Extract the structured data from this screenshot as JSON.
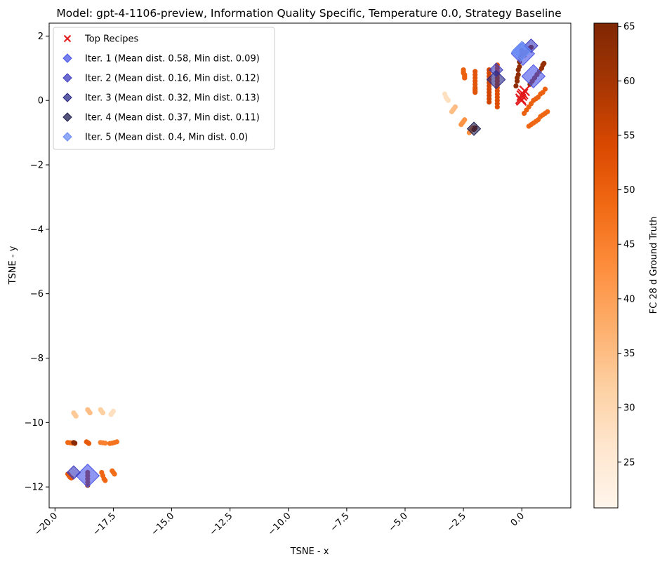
{
  "chart_data": {
    "type": "scatter",
    "title": "Model: gpt-4-1106-preview, Information Quality Specific, Temperature 0.0, Strategy Baseline",
    "xlabel": "TSNE - x",
    "ylabel": "TSNE - y",
    "xlim": [
      -20.25,
      2.1
    ],
    "ylim": [
      -12.65,
      2.4
    ],
    "xticks": [
      -20.0,
      -17.5,
      -15.0,
      -12.5,
      -10.0,
      -7.5,
      -5.0,
      -2.5,
      0.0
    ],
    "xtick_labels": [
      "−20.0",
      "−17.5",
      "−15.0",
      "−12.5",
      "−10.0",
      "−7.5",
      "−5.0",
      "−2.5",
      "0.0"
    ],
    "yticks": [
      2,
      0,
      -2,
      -4,
      -6,
      -8,
      -10,
      -12
    ],
    "ytick_labels": [
      "2",
      "0",
      "−2",
      "−4",
      "−6",
      "−8",
      "−10",
      "−12"
    ],
    "grid": false,
    "legend_position": "top-left",
    "colorbar": {
      "label": "FC 28 d Ground Truth",
      "range": [
        20.8,
        65.3
      ],
      "ticks": [
        25,
        30,
        35,
        40,
        45,
        50,
        55,
        60,
        65
      ],
      "colormap": "Oranges"
    },
    "legend": [
      {
        "label": "Top Recipes",
        "marker": "x",
        "color": "#e31a1c"
      },
      {
        "label": "Iter. 1 (Mean dist. 0.58, Min dist. 0.09)",
        "marker": "diamond",
        "color": "#4b55e8"
      },
      {
        "label": "Iter. 2 (Mean dist. 0.16, Min dist. 0.12)",
        "marker": "diamond",
        "color": "#3c3cc0"
      },
      {
        "label": "Iter. 3 (Mean dist. 0.32, Min dist. 0.13)",
        "marker": "diamond",
        "color": "#2a2a8a"
      },
      {
        "label": "Iter. 4 (Mean dist. 0.37, Min dist. 0.11)",
        "marker": "diamond",
        "color": "#1e1e50"
      },
      {
        "label": "Iter. 5 (Mean dist. 0.4, Min dist. 0.0)",
        "marker": "diamond",
        "color": "#6b8cf5"
      }
    ],
    "scatter_series": [
      {
        "x": [
          -19.2,
          -19.15,
          -19.1
        ],
        "y": [
          -9.7,
          -9.75,
          -9.8
        ],
        "c": 33
      },
      {
        "x": [
          -18.6,
          -18.55,
          -18.5
        ],
        "y": [
          -9.6,
          -9.65,
          -9.7
        ],
        "c": 35
      },
      {
        "x": [
          -18.05,
          -18.0,
          -17.95
        ],
        "y": [
          -9.6,
          -9.65,
          -9.7
        ],
        "c": 32
      },
      {
        "x": [
          -17.6,
          -17.55,
          -17.5
        ],
        "y": [
          -9.75,
          -9.7,
          -9.65
        ],
        "c": 28
      },
      {
        "x": [
          -19.45,
          -19.35,
          -19.25,
          -19.15
        ],
        "y": [
          -10.62,
          -10.63,
          -10.64,
          -10.65
        ],
        "c": 49
      },
      {
        "x": [
          -18.65,
          -18.6,
          -18.55
        ],
        "y": [
          -10.6,
          -10.62,
          -10.65
        ],
        "c": 51
      },
      {
        "x": [
          -18.05,
          -17.95,
          -17.85
        ],
        "y": [
          -10.62,
          -10.63,
          -10.64
        ],
        "c": 45
      },
      {
        "x": [
          -17.65,
          -17.55,
          -17.45,
          -17.35
        ],
        "y": [
          -10.65,
          -10.64,
          -10.62,
          -10.6
        ],
        "c": 47
      },
      {
        "x": [
          -19.45,
          -19.4,
          -19.35,
          -19.3
        ],
        "y": [
          -11.6,
          -11.65,
          -11.7,
          -11.72
        ],
        "c": 51
      },
      {
        "x": [
          -18.6,
          -18.6,
          -18.6,
          -18.6,
          -18.6
        ],
        "y": [
          -11.55,
          -11.65,
          -11.75,
          -11.85,
          -11.95
        ],
        "c": 60
      },
      {
        "x": [
          -18.0,
          -17.95,
          -17.9,
          -17.85
        ],
        "y": [
          -11.55,
          -11.65,
          -11.75,
          -11.8
        ],
        "c": 49
      },
      {
        "x": [
          -17.55,
          -17.5,
          -17.45
        ],
        "y": [
          -11.5,
          -11.55,
          -11.6
        ],
        "c": 48
      },
      {
        "x": [
          -3.3,
          -3.25,
          -3.2,
          -3.15
        ],
        "y": [
          0.2,
          0.1,
          0.05,
          0.0
        ],
        "c": 28
      },
      {
        "x": [
          -2.85,
          -2.9,
          -2.95,
          -3.0
        ],
        "y": [
          -0.2,
          -0.25,
          -0.3,
          -0.35
        ],
        "c": 35
      },
      {
        "x": [
          -2.6,
          -2.55,
          -2.5,
          -2.45
        ],
        "y": [
          -0.75,
          -0.7,
          -0.65,
          -0.6
        ],
        "c": 42
      },
      {
        "x": [
          -2.25,
          -2.2,
          -2.15,
          -2.1
        ],
        "y": [
          -1.0,
          -0.95,
          -0.9,
          -0.85
        ],
        "c": 43
      },
      {
        "x": [
          -2.5,
          -2.5,
          -2.5,
          -2.45,
          -2.45,
          -2.45,
          -2.45
        ],
        "y": [
          0.95,
          0.9,
          0.85,
          0.8,
          0.75,
          0.7,
          0.7
        ],
        "c": 50
      },
      {
        "x": [
          -2.0,
          -2.0,
          -2.0,
          -2.0,
          -2.0,
          -2.0,
          -2.0,
          -2.0,
          -2.0
        ],
        "y": [
          0.9,
          0.8,
          0.7,
          0.6,
          0.5,
          0.4,
          0.35,
          0.3,
          0.25
        ],
        "c": 52
      },
      {
        "x": [
          -1.4,
          -1.4,
          -1.4,
          -1.4,
          -1.4,
          -1.4,
          -1.4,
          -1.4,
          -1.4,
          -1.4,
          -1.4
        ],
        "y": [
          0.95,
          0.85,
          0.75,
          0.65,
          0.55,
          0.45,
          0.35,
          0.25,
          0.15,
          0.05,
          -0.05
        ],
        "c": 55
      },
      {
        "x": [
          -1.05,
          -1.05,
          -1.05,
          -1.05,
          -1.05,
          -1.05,
          -1.05,
          -1.05,
          -1.05,
          -1.05,
          -1.05,
          -1.05,
          -1.05,
          -1.05
        ],
        "y": [
          1.1,
          1.0,
          0.9,
          0.8,
          0.7,
          0.6,
          0.5,
          0.4,
          0.3,
          0.2,
          0.1,
          0.0,
          -0.1,
          -0.2
        ],
        "c": 53
      },
      {
        "x": [
          -0.25,
          -0.2,
          -0.2,
          -0.15,
          -0.15,
          -0.1,
          -0.1,
          -0.05,
          0.0,
          0.0
        ],
        "y": [
          0.45,
          0.6,
          0.7,
          0.8,
          0.95,
          1.05,
          1.2,
          1.35,
          1.45,
          1.55
        ],
        "c": 63
      },
      {
        "x": [
          0.1,
          0.2,
          0.3,
          0.4,
          0.5,
          0.6,
          0.7,
          0.8,
          0.9,
          1.0
        ],
        "y": [
          -0.4,
          -0.3,
          -0.2,
          -0.1,
          0.0,
          0.05,
          0.1,
          0.2,
          0.25,
          0.35
        ],
        "c": 50
      },
      {
        "x": [
          0.3,
          0.4,
          0.5,
          0.6,
          0.7,
          0.8,
          0.9,
          1.0,
          1.1
        ],
        "y": [
          -0.8,
          -0.75,
          -0.7,
          -0.65,
          -0.6,
          -0.5,
          -0.45,
          -0.4,
          -0.35
        ],
        "c": 49
      },
      {
        "x": [
          0.35,
          0.45,
          0.55,
          0.65,
          0.75,
          0.85,
          0.9,
          0.95
        ],
        "y": [
          0.5,
          0.6,
          0.7,
          0.8,
          0.9,
          1.0,
          1.1,
          1.15
        ],
        "c": 62
      },
      {
        "x": [
          0.1,
          0.2,
          0.3,
          0.4
        ],
        "y": [
          1.4,
          1.5,
          1.6,
          1.65
        ],
        "c": 63
      },
      {
        "x": [
          -2.05,
          -2.0
        ],
        "y": [
          -0.9,
          -0.85
        ],
        "c": 64
      },
      {
        "x": [
          -19.2,
          -19.15
        ],
        "y": [
          -10.62,
          -10.64
        ],
        "c": 64
      }
    ],
    "top_recipes": {
      "x": [
        -0.05,
        0.0,
        0.05,
        0.12,
        -0.02
      ],
      "y": [
        0.05,
        0.15,
        0.2,
        0.3,
        0.0
      ]
    },
    "iterations": [
      {
        "name": "Iter. 1",
        "x": [
          -18.6,
          0.05,
          0.5
        ],
        "y": [
          -11.65,
          1.45,
          0.75
        ],
        "sizes": [
          3,
          3,
          3
        ]
      },
      {
        "name": "Iter. 2",
        "x": [
          -19.2,
          -1.1,
          0.4
        ],
        "y": [
          -11.55,
          0.95,
          1.7
        ],
        "sizes": [
          1,
          1,
          1
        ]
      },
      {
        "name": "Iter. 3",
        "x": [
          -1.1
        ],
        "y": [
          0.65
        ],
        "sizes": [
          2
        ]
      },
      {
        "name": "Iter. 4",
        "x": [
          -2.05
        ],
        "y": [
          -0.88
        ],
        "sizes": [
          1
        ]
      },
      {
        "name": "Iter. 5",
        "x": [
          -0.05,
          0.0
        ],
        "y": [
          1.5,
          1.55
        ],
        "sizes": [
          2,
          2
        ]
      }
    ]
  }
}
